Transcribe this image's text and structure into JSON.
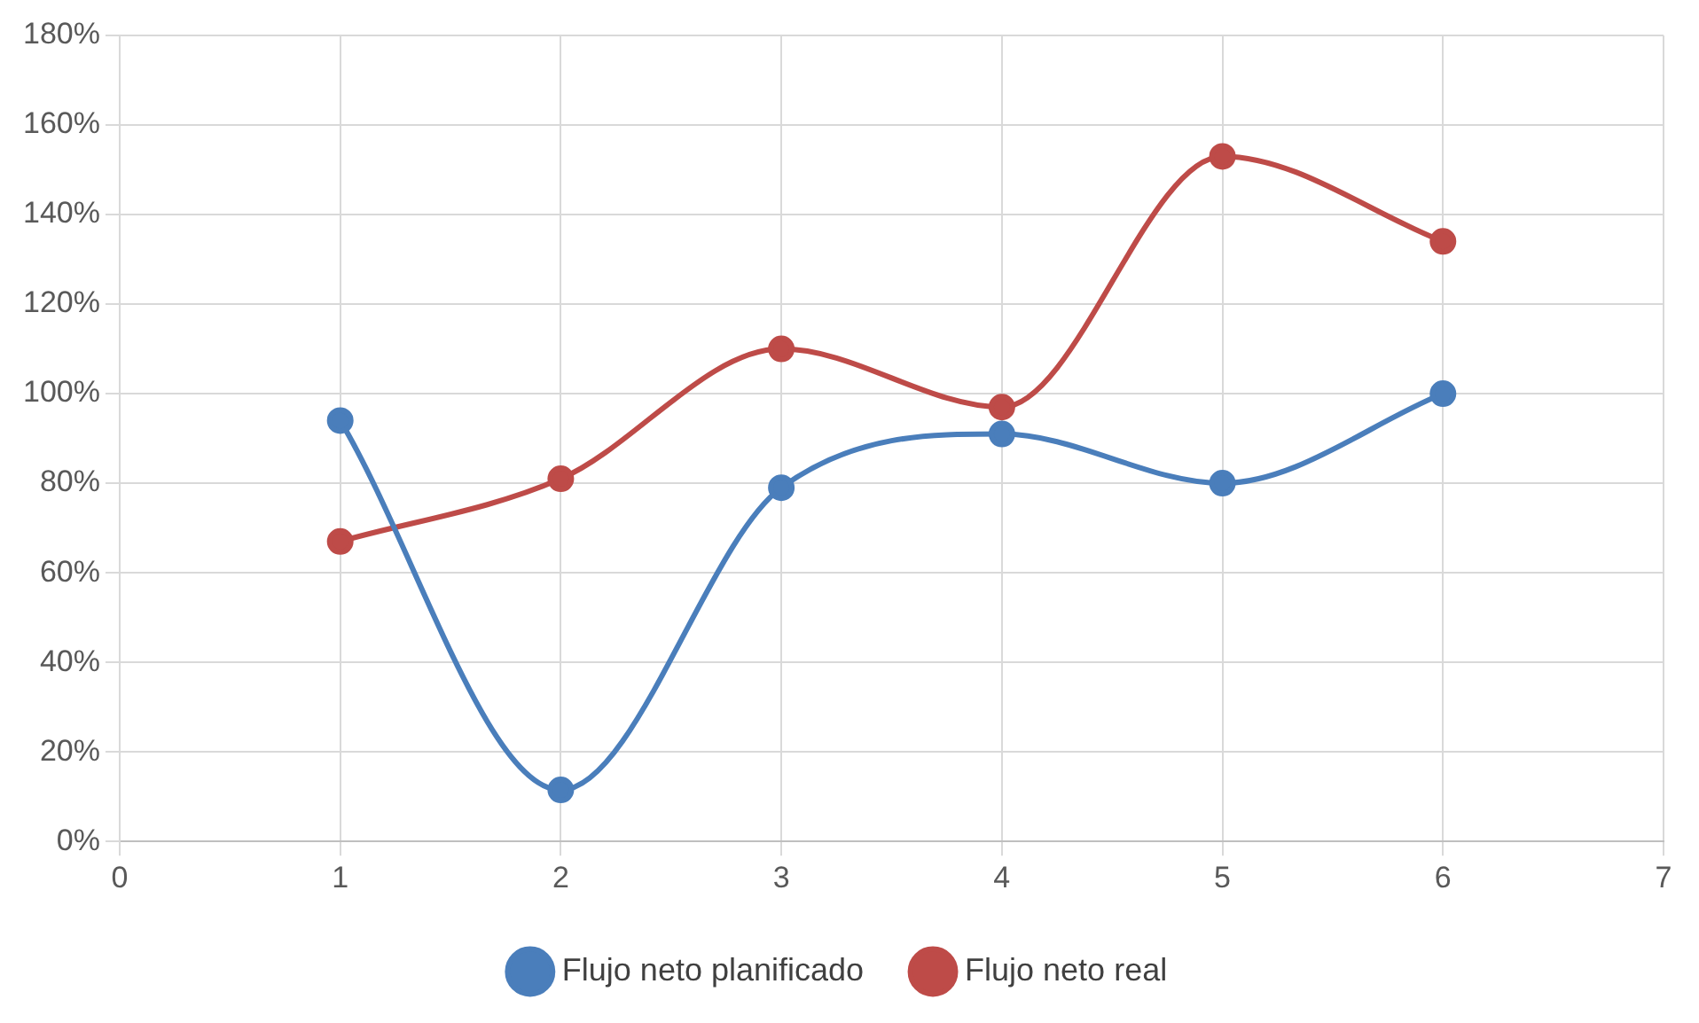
{
  "chart_data": {
    "type": "line",
    "x": [
      1,
      2,
      3,
      4,
      5,
      6
    ],
    "series": [
      {
        "name": "Flujo neto planificado",
        "color": "#4a7ebb",
        "values": [
          94,
          11.5,
          79,
          91,
          80,
          100
        ]
      },
      {
        "name": "Flujo neto real",
        "color": "#be4b48",
        "values": [
          67,
          81,
          110,
          97,
          153,
          134
        ]
      }
    ],
    "xlim": [
      0,
      7
    ],
    "xticks": [
      0,
      1,
      2,
      3,
      4,
      5,
      6,
      7
    ],
    "ylim": [
      0,
      180
    ],
    "yticks": [
      {
        "value": 0,
        "label": "0%"
      },
      {
        "value": 20,
        "label": "20%"
      },
      {
        "value": 40,
        "label": "40%"
      },
      {
        "value": 60,
        "label": "60%"
      },
      {
        "value": 80,
        "label": "80%"
      },
      {
        "value": 100,
        "label": "100%"
      },
      {
        "value": 120,
        "label": "120%"
      },
      {
        "value": 140,
        "label": "140%"
      },
      {
        "value": 160,
        "label": "160%"
      },
      {
        "value": 180,
        "label": "180%"
      }
    ],
    "grid": true,
    "legend": "bottom",
    "marker": "circle",
    "line_style": "solid"
  }
}
